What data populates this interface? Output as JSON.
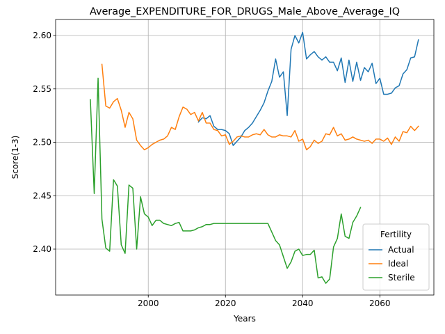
{
  "chart_data": {
    "type": "line",
    "title": "Average_EXPENDITURE_FOR_DRUGS_Male_Above_Average_IQ",
    "xlabel": "Years",
    "ylabel": "Score(1-3)",
    "xlim": [
      1976,
      2074
    ],
    "ylim": [
      2.357,
      2.615
    ],
    "x_ticks": [
      2000,
      2020,
      2040,
      2060
    ],
    "y_ticks": [
      2.4,
      2.45,
      2.5,
      2.55,
      2.6
    ],
    "x_tick_labels": [
      "2000",
      "2020",
      "2040",
      "2060"
    ],
    "y_tick_labels": [
      "2.40",
      "2.45",
      "2.50",
      "2.55",
      "2.60"
    ],
    "grid": true,
    "legend": {
      "title": "Fertility",
      "placement": "lower-right"
    },
    "series": [
      {
        "name": "Actual",
        "color": "#1f77b4",
        "x": [
          2013,
          2014,
          2015,
          2016,
          2017,
          2018,
          2019,
          2020,
          2021,
          2022,
          2023,
          2024,
          2025,
          2026,
          2027,
          2028,
          2029,
          2030,
          2031,
          2032,
          2033,
          2034,
          2035,
          2036,
          2037,
          2038,
          2039,
          2040,
          2041,
          2042,
          2043,
          2044,
          2045,
          2046,
          2047,
          2048,
          2049,
          2050,
          2051,
          2052,
          2053,
          2054,
          2055,
          2056,
          2057,
          2058,
          2059,
          2060,
          2061,
          2062,
          2063,
          2064,
          2065,
          2066,
          2067,
          2068,
          2069,
          2070
        ],
        "values": [
          2.519,
          2.523,
          2.522,
          2.525,
          2.515,
          2.512,
          2.512,
          2.511,
          2.508,
          2.497,
          2.501,
          2.505,
          2.511,
          2.514,
          2.518,
          2.524,
          2.53,
          2.537,
          2.548,
          2.557,
          2.578,
          2.561,
          2.566,
          2.525,
          2.587,
          2.6,
          2.593,
          2.603,
          2.578,
          2.582,
          2.585,
          2.58,
          2.577,
          2.58,
          2.575,
          2.575,
          2.567,
          2.579,
          2.556,
          2.577,
          2.557,
          2.575,
          2.558,
          2.57,
          2.566,
          2.574,
          2.555,
          2.56,
          2.545,
          2.545,
          2.546,
          2.551,
          2.553,
          2.564,
          2.568,
          2.579,
          2.58,
          2.596
        ]
      },
      {
        "name": "Ideal",
        "color": "#ff7f0e",
        "x": [
          1988,
          1989,
          1990,
          1991,
          1992,
          1993,
          1994,
          1995,
          1996,
          1997,
          1998,
          1999,
          2000,
          2001,
          2002,
          2003,
          2004,
          2005,
          2006,
          2007,
          2008,
          2009,
          2010,
          2011,
          2012,
          2013,
          2014,
          2015,
          2016,
          2017,
          2018,
          2019,
          2020,
          2021,
          2022,
          2023,
          2024,
          2025,
          2026,
          2027,
          2028,
          2029,
          2030,
          2031,
          2032,
          2033,
          2034,
          2035,
          2036,
          2037,
          2038,
          2039,
          2040,
          2041,
          2042,
          2043,
          2044,
          2045,
          2046,
          2047,
          2048,
          2049,
          2050,
          2051,
          2052,
          2053,
          2054,
          2055,
          2056,
          2057,
          2058,
          2059,
          2060,
          2061,
          2062,
          2063,
          2064,
          2065,
          2066,
          2067,
          2068,
          2069,
          2070
        ],
        "values": [
          2.573,
          2.534,
          2.532,
          2.538,
          2.541,
          2.53,
          2.514,
          2.528,
          2.522,
          2.502,
          2.497,
          2.493,
          2.495,
          2.498,
          2.5,
          2.502,
          2.503,
          2.506,
          2.514,
          2.512,
          2.524,
          2.533,
          2.531,
          2.526,
          2.528,
          2.52,
          2.528,
          2.518,
          2.518,
          2.512,
          2.511,
          2.506,
          2.507,
          2.498,
          2.501,
          2.505,
          2.506,
          2.505,
          2.505,
          2.507,
          2.508,
          2.507,
          2.512,
          2.507,
          2.505,
          2.505,
          2.507,
          2.506,
          2.506,
          2.505,
          2.511,
          2.501,
          2.503,
          2.493,
          2.496,
          2.502,
          2.499,
          2.501,
          2.508,
          2.507,
          2.514,
          2.506,
          2.508,
          2.502,
          2.503,
          2.505,
          2.503,
          2.502,
          2.501,
          2.502,
          2.499,
          2.503,
          2.503,
          2.501,
          2.504,
          2.498,
          2.505,
          2.501,
          2.51,
          2.509,
          2.515,
          2.511,
          2.515
        ]
      },
      {
        "name": "Sterile",
        "color": "#2ca02c",
        "x": [
          1985,
          1986,
          1987,
          1988,
          1989,
          1990,
          1991,
          1992,
          1993,
          1994,
          1995,
          1996,
          1997,
          1998,
          1999,
          2000,
          2001,
          2002,
          2003,
          2004,
          2005,
          2006,
          2007,
          2008,
          2009,
          2010,
          2011,
          2012,
          2013,
          2014,
          2015,
          2016,
          2017,
          2018,
          2019,
          2020,
          2021,
          2022,
          2023,
          2024,
          2025,
          2026,
          2027,
          2028,
          2029,
          2030,
          2031,
          2032,
          2033,
          2034,
          2035,
          2036,
          2037,
          2038,
          2039,
          2040,
          2041,
          2042,
          2043,
          2044,
          2045,
          2046,
          2047,
          2048,
          2049,
          2050,
          2051,
          2052,
          2053,
          2054,
          2055
        ],
        "values": [
          2.54,
          2.452,
          2.56,
          2.428,
          2.401,
          2.398,
          2.465,
          2.459,
          2.404,
          2.396,
          2.46,
          2.457,
          2.4,
          2.449,
          2.433,
          2.43,
          2.422,
          2.427,
          2.427,
          2.424,
          2.423,
          2.422,
          2.424,
          2.425,
          2.417,
          2.417,
          2.417,
          2.418,
          2.42,
          2.421,
          2.423,
          2.423,
          2.424,
          2.424,
          2.424,
          2.424,
          2.424,
          2.424,
          2.424,
          2.424,
          2.424,
          2.424,
          2.424,
          2.424,
          2.424,
          2.424,
          2.424,
          2.416,
          2.408,
          2.404,
          2.393,
          2.382,
          2.388,
          2.398,
          2.4,
          2.394,
          2.395,
          2.395,
          2.399,
          2.373,
          2.374,
          2.368,
          2.372,
          2.402,
          2.41,
          2.433,
          2.412,
          2.41,
          2.425,
          2.431,
          2.439
        ]
      }
    ]
  }
}
